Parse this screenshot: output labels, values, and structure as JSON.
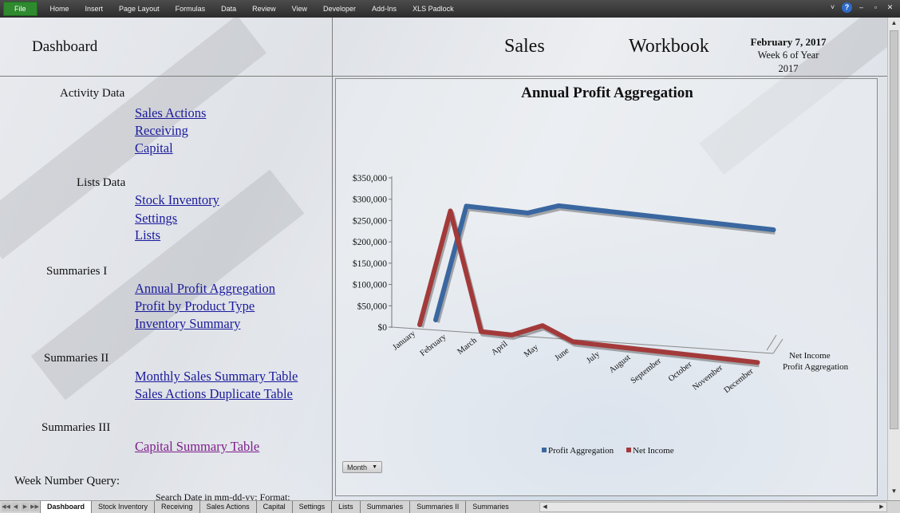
{
  "ribbon": {
    "file_tab": "File",
    "tabs": [
      "Home",
      "Insert",
      "Page Layout",
      "Formulas",
      "Data",
      "Review",
      "View",
      "Developer",
      "Add-Ins",
      "XLS Padlock"
    ],
    "controls": {
      "collapse": "˅",
      "help": "?",
      "minimize": "–",
      "restore": "▫",
      "close": "✕"
    }
  },
  "header": {
    "dashboard_title": "Dashboard",
    "sales": "Sales",
    "workbook": "Workbook",
    "date": "February 7, 2017",
    "week_line": "Week 6 of  Year",
    "year": "2017"
  },
  "nav": {
    "activity": {
      "label": "Activity Data",
      "links": [
        "Sales Actions",
        "Receiving",
        "Capital"
      ]
    },
    "lists": {
      "label": "Lists Data",
      "links": [
        "Stock Inventory",
        "Settings",
        "Lists"
      ]
    },
    "summaries1": {
      "label": "Summaries I",
      "links": [
        "Annual Profit Aggregation",
        "Profit by Product Type",
        "Inventory Summary"
      ]
    },
    "summaries2": {
      "label": "Summaries II",
      "links": [
        "Monthly Sales Summary Table",
        "Sales Actions Duplicate Table"
      ]
    },
    "summaries3": {
      "label": "Summaries III",
      "links": [
        "Capital Summary Table"
      ]
    }
  },
  "query": {
    "label": "Week Number Query:",
    "sub": "Search Date in mm-dd-yy: Format:"
  },
  "month_button": {
    "label": "Month",
    "arrow": "▼"
  },
  "chart_data": {
    "type": "line",
    "title": "Annual Profit Aggregation",
    "categories": [
      "January",
      "February",
      "March",
      "April",
      "May",
      "June",
      "July",
      "August",
      "September",
      "October",
      "November",
      "December"
    ],
    "ylim": [
      0,
      350000
    ],
    "yticks": [
      "$0",
      "$50,000",
      "$100,000",
      "$150,000",
      "$200,000",
      "$250,000",
      "$300,000",
      "$350,000"
    ],
    "series": [
      {
        "name": "Profit Aggregation",
        "color": "#3a67a0",
        "values": [
          0,
          275000,
          275000,
          275000,
          300000,
          300000,
          300000,
          300000,
          300000,
          300000,
          300000,
          300000
        ]
      },
      {
        "name": "Net Income",
        "color": "#a33a3a",
        "values": [
          0,
          275000,
          0,
          0,
          30000,
          0,
          0,
          0,
          0,
          0,
          0,
          0
        ]
      }
    ],
    "depth_labels": [
      "Net Income",
      "Profit Aggregation"
    ],
    "legend_position": "bottom",
    "grid": false,
    "style": "3d-line"
  },
  "sheet_tabs": [
    "Dashboard",
    "Stock Inventory",
    "Receiving",
    "Sales Actions",
    "Capital",
    "Settings",
    "Lists",
    "Summaries",
    "Summaries II",
    "Summaries"
  ],
  "tab_nav": [
    "◀◀",
    "◀",
    "▶",
    "▶▶"
  ],
  "scroll": {
    "up": "▲",
    "down": "▼",
    "left": "◀",
    "right": "▶"
  }
}
